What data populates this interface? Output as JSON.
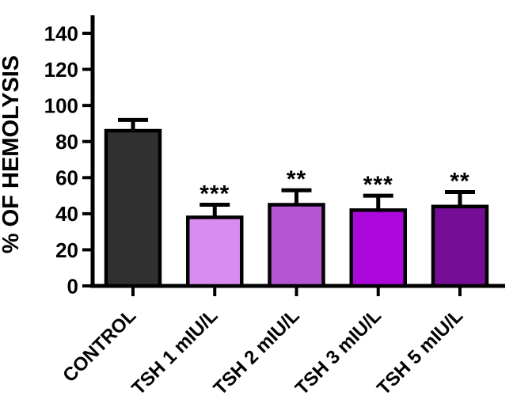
{
  "figure": {
    "background": "#ffffff"
  },
  "chart_data": {
    "type": "bar",
    "title": "",
    "ylabel": "% OF HEMOLYSIS",
    "xlabel": "",
    "ylim": [
      0,
      150
    ],
    "yticks": [
      0,
      20,
      40,
      60,
      80,
      100,
      120,
      140
    ],
    "categories": [
      "CONTROL",
      "TSH 1 mIU/L",
      "TSH 2 mIU/L",
      "TSH 3 mIU/L",
      "TSH 5 mIU/L"
    ],
    "values": [
      86,
      38,
      45,
      42,
      44
    ],
    "errors_upper": [
      6,
      7,
      8,
      8,
      8
    ],
    "significance": [
      "",
      "***",
      "**",
      "***",
      "**"
    ],
    "bar_colors": [
      "#303030",
      "#D98CEF",
      "#B456D3",
      "#AC08DC",
      "#750C96"
    ],
    "bar_border_color": "#000000",
    "error_bar_color": "#000000",
    "axis_color": "#000000",
    "text_color": "#000000",
    "grid": false,
    "legend": false
  }
}
